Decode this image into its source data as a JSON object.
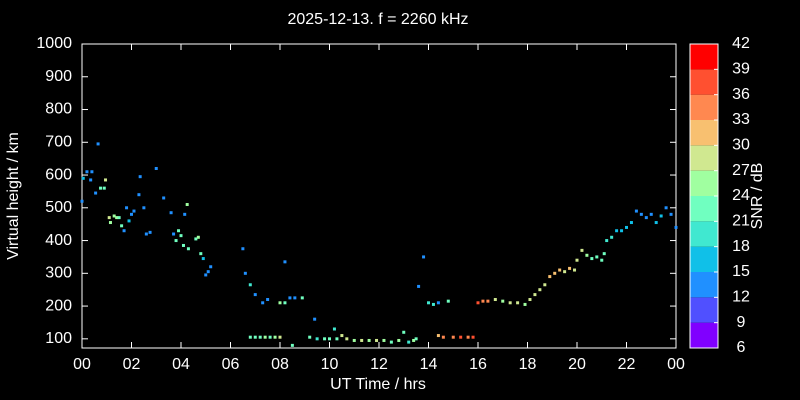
{
  "chart_data": {
    "type": "scatter",
    "title": "2025-12-13. f = 2260 kHz",
    "xlabel": "UT Time / hrs",
    "ylabel": "Virtual height / km",
    "xlim": [
      0,
      24
    ],
    "xticks": [
      {
        "value": 0,
        "label": "00"
      },
      {
        "value": 2,
        "label": "02"
      },
      {
        "value": 4,
        "label": "04"
      },
      {
        "value": 6,
        "label": "06"
      },
      {
        "value": 8,
        "label": "08"
      },
      {
        "value": 10,
        "label": "10"
      },
      12,
      14,
      16,
      18,
      20,
      22,
      {
        "value": 24,
        "label": "00"
      }
    ],
    "ylim": [
      72,
      1000
    ],
    "yticks": [
      100,
      200,
      300,
      400,
      500,
      600,
      700,
      800,
      900,
      1000
    ],
    "x": [
      0.0,
      0.05,
      0.2,
      0.35,
      0.4,
      0.55,
      0.65,
      0.75,
      0.9,
      0.95,
      1.1,
      1.15,
      1.3,
      1.4,
      1.5,
      1.6,
      1.7,
      1.8,
      1.9,
      2.0,
      2.1,
      2.3,
      2.35,
      2.5,
      2.6,
      2.75,
      3.0,
      3.3,
      3.6,
      3.7,
      3.8,
      3.9,
      4.0,
      4.1,
      4.15,
      4.25,
      4.3,
      4.6,
      4.7,
      4.8,
      4.9,
      5.0,
      5.1,
      5.2,
      6.5,
      6.6,
      6.8,
      7.0,
      7.3,
      7.5,
      6.8,
      7.0,
      7.2,
      7.4,
      7.6,
      7.8,
      8.0,
      8.0,
      8.2,
      8.2,
      8.4,
      8.6,
      8.9,
      8.5,
      9.2,
      9.5,
      9.4,
      9.8,
      10.0,
      10.2,
      10.3,
      10.5,
      10.7,
      11.0,
      11.3,
      11.6,
      11.9,
      12.2,
      12.5,
      12.8,
      13.0,
      13.2,
      13.4,
      13.5,
      13.6,
      13.8,
      14.0,
      14.2,
      14.4,
      14.4,
      14.6,
      14.8,
      15.0,
      15.3,
      15.6,
      15.8,
      16.0,
      16.2,
      16.4,
      16.7,
      17.0,
      17.3,
      17.6,
      17.9,
      18.1,
      18.3,
      18.5,
      18.7,
      18.9,
      19.1,
      19.3,
      19.5,
      19.7,
      19.9,
      20.0,
      20.2,
      20.4,
      20.6,
      20.8,
      21.0,
      21.1,
      21.2,
      21.4,
      21.6,
      21.8,
      22.0,
      22.2,
      22.4,
      22.6,
      22.8,
      23.0,
      23.2,
      23.4,
      23.6,
      23.8,
      24.0
    ],
    "values": [
      520,
      590,
      610,
      585,
      610,
      545,
      695,
      560,
      560,
      585,
      470,
      455,
      475,
      470,
      470,
      445,
      430,
      500,
      460,
      480,
      490,
      540,
      595,
      500,
      420,
      425,
      620,
      530,
      485,
      420,
      400,
      430,
      415,
      385,
      480,
      510,
      375,
      405,
      410,
      360,
      345,
      295,
      305,
      320,
      375,
      300,
      265,
      235,
      210,
      220,
      105,
      105,
      105,
      105,
      105,
      105,
      105,
      210,
      210,
      335,
      225,
      225,
      225,
      80,
      105,
      100,
      160,
      100,
      100,
      130,
      100,
      110,
      100,
      95,
      95,
      95,
      95,
      95,
      90,
      95,
      120,
      90,
      95,
      100,
      260,
      350,
      210,
      205,
      210,
      110,
      105,
      215,
      105,
      105,
      105,
      105,
      210,
      215,
      215,
      220,
      215,
      210,
      210,
      205,
      220,
      235,
      250,
      265,
      290,
      300,
      310,
      305,
      315,
      310,
      340,
      370,
      355,
      345,
      350,
      340,
      360,
      400,
      410,
      430,
      430,
      440,
      455,
      490,
      480,
      470,
      480,
      455,
      475,
      500,
      480,
      440
    ],
    "snr": [
      12,
      15,
      12,
      12,
      12,
      12,
      12,
      21,
      21,
      27,
      27,
      24,
      24,
      24,
      21,
      21,
      12,
      12,
      15,
      12,
      12,
      12,
      12,
      12,
      12,
      12,
      12,
      12,
      12,
      12,
      21,
      21,
      21,
      21,
      12,
      24,
      21,
      21,
      24,
      21,
      15,
      12,
      12,
      12,
      12,
      12,
      18,
      12,
      12,
      12,
      21,
      21,
      21,
      24,
      21,
      24,
      27,
      24,
      21,
      12,
      12,
      12,
      21,
      21,
      21,
      18,
      12,
      21,
      21,
      18,
      21,
      27,
      27,
      24,
      27,
      24,
      27,
      24,
      21,
      24,
      21,
      18,
      24,
      21,
      12,
      12,
      18,
      18,
      12,
      30,
      33,
      21,
      33,
      36,
      33,
      36,
      36,
      33,
      33,
      27,
      24,
      27,
      27,
      24,
      27,
      27,
      27,
      27,
      30,
      30,
      30,
      27,
      30,
      27,
      27,
      27,
      24,
      21,
      21,
      21,
      21,
      18,
      18,
      15,
      15,
      15,
      15,
      12,
      12,
      12,
      12,
      15,
      15,
      12,
      12,
      12
    ],
    "colorbar": {
      "label": "SNR / dB",
      "lim": [
        6,
        42
      ],
      "ticks": [
        6,
        9,
        12,
        15,
        18,
        21,
        24,
        27,
        30,
        33,
        36,
        39,
        42
      ],
      "colors": [
        "#8000ff",
        "#5050ff",
        "#2090ff",
        "#10c0e8",
        "#40e8d0",
        "#70ffc0",
        "#a0ffa0",
        "#d0e890",
        "#f8c070",
        "#ff8850",
        "#ff5030",
        "#ff0000"
      ]
    }
  }
}
